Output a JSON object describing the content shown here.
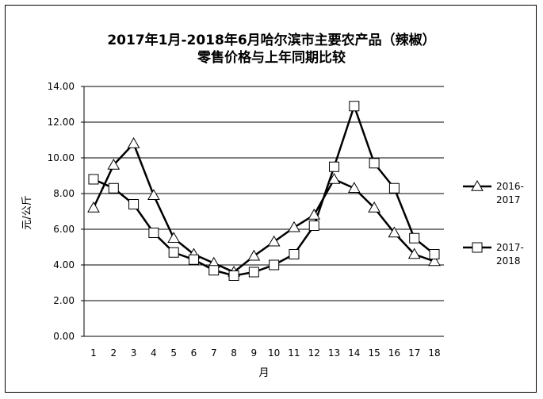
{
  "chart_data": {
    "type": "line",
    "title_line1": "2017年1月-2018年6月哈尔滨市主要农产品（辣椒）",
    "title_line2": "零售价格与上年同期比较",
    "xlabel": "月",
    "ylabel": "元/公斤",
    "ylim": [
      0,
      14
    ],
    "yticks": [
      "0.00",
      "2.00",
      "4.00",
      "6.00",
      "8.00",
      "10.00",
      "12.00",
      "14.00"
    ],
    "categories": [
      "1",
      "2",
      "3",
      "4",
      "5",
      "6",
      "7",
      "8",
      "9",
      "10",
      "11",
      "12",
      "13",
      "14",
      "15",
      "16",
      "17",
      "18"
    ],
    "legend_position": "right",
    "grid": true,
    "series": [
      {
        "name": "2016-2017",
        "legend_line1": "2016-",
        "legend_line2": "2017",
        "marker": "triangle",
        "values": [
          7.2,
          9.6,
          10.8,
          7.9,
          5.5,
          4.6,
          4.1,
          3.6,
          4.5,
          5.3,
          6.1,
          6.8,
          8.8,
          8.3,
          7.2,
          5.8,
          4.6,
          4.2
        ]
      },
      {
        "name": "2017-2018",
        "legend_line1": "2017-",
        "legend_line2": "2018",
        "marker": "square",
        "values": [
          8.8,
          8.3,
          7.4,
          5.8,
          4.7,
          4.3,
          3.7,
          3.4,
          3.6,
          4.0,
          4.6,
          6.2,
          9.5,
          12.9,
          9.7,
          8.3,
          5.5,
          4.6
        ]
      }
    ]
  }
}
